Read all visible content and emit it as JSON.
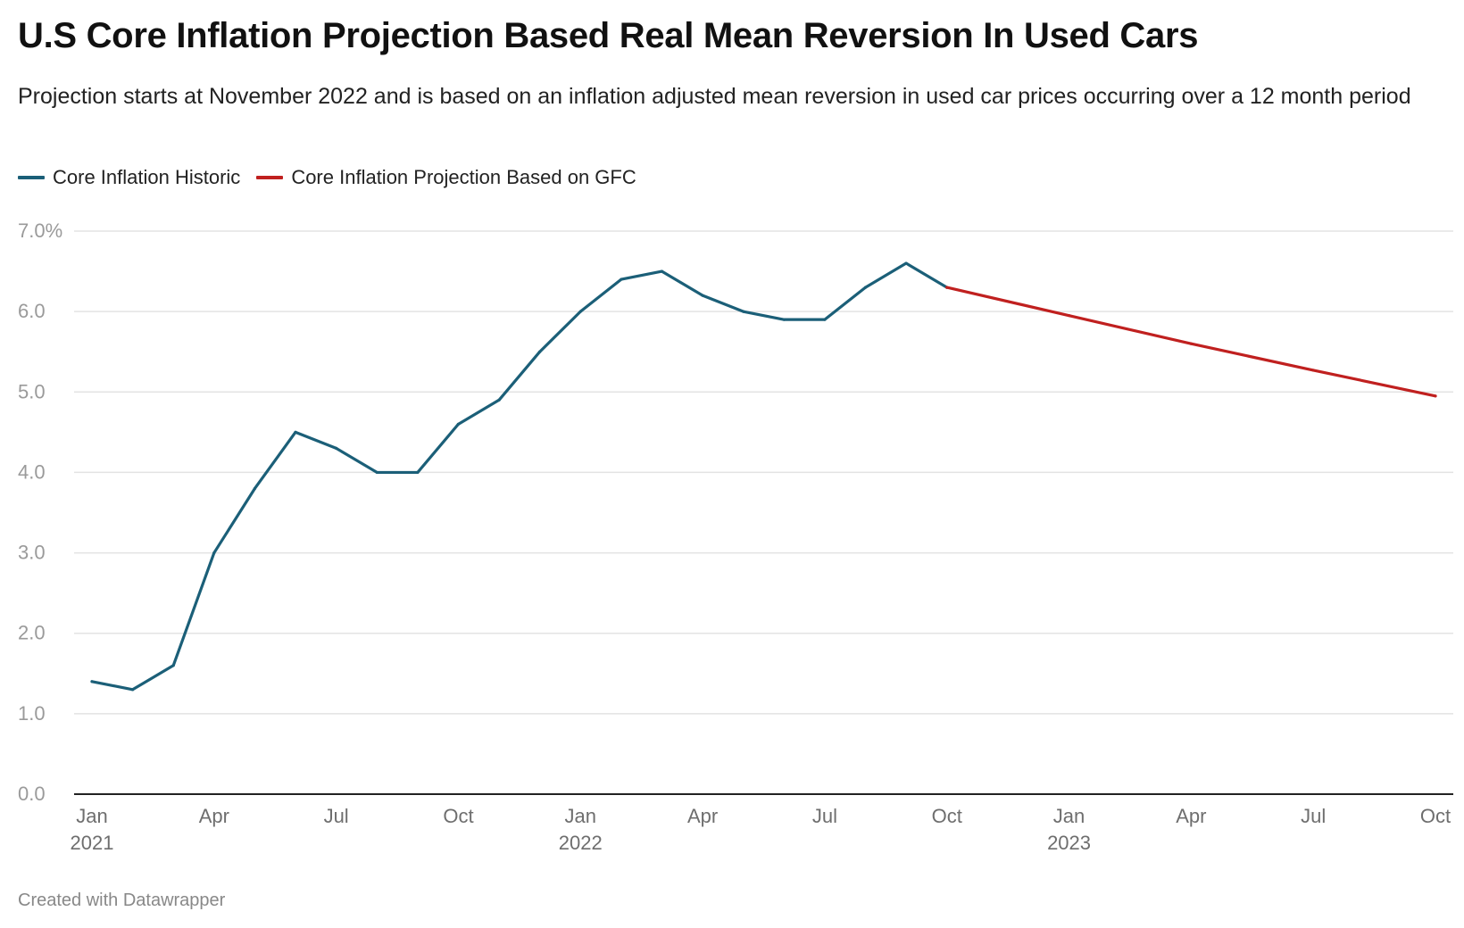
{
  "title": "U.S Core Inflation Projection Based Real Mean Reversion In Used Cars",
  "subtitle": "Projection starts at November 2022 and is based on an inflation adjusted mean reversion in used car prices occurring over a 12 month period",
  "footer": "Created with Datawrapper",
  "legend": [
    {
      "label": "Core Inflation Historic",
      "color": "#1b5f78"
    },
    {
      "label": "Core Inflation Projection Based on GFC",
      "color": "#c0201f"
    }
  ],
  "chart_data": {
    "type": "line",
    "title": "U.S Core Inflation Projection Based Real Mean Reversion In Used Cars",
    "x_unit": "month",
    "xlim": [
      "2021-01",
      "2023-10"
    ],
    "ylim": [
      0,
      7
    ],
    "y_ticks": [
      {
        "value": 0,
        "label": "0.0"
      },
      {
        "value": 1,
        "label": "1.0"
      },
      {
        "value": 2,
        "label": "2.0"
      },
      {
        "value": 3,
        "label": "3.0"
      },
      {
        "value": 4,
        "label": "4.0"
      },
      {
        "value": 5,
        "label": "5.0"
      },
      {
        "value": 6,
        "label": "6.0"
      },
      {
        "value": 7,
        "label": "7.0%"
      }
    ],
    "x_ticks": [
      {
        "date": "2021-01",
        "label": "Jan",
        "year": "2021"
      },
      {
        "date": "2021-04",
        "label": "Apr",
        "year": ""
      },
      {
        "date": "2021-07",
        "label": "Jul",
        "year": ""
      },
      {
        "date": "2021-10",
        "label": "Oct",
        "year": ""
      },
      {
        "date": "2022-01",
        "label": "Jan",
        "year": "2022"
      },
      {
        "date": "2022-04",
        "label": "Apr",
        "year": ""
      },
      {
        "date": "2022-07",
        "label": "Jul",
        "year": ""
      },
      {
        "date": "2022-10",
        "label": "Oct",
        "year": ""
      },
      {
        "date": "2023-01",
        "label": "Jan",
        "year": "2023"
      },
      {
        "date": "2023-04",
        "label": "Apr",
        "year": ""
      },
      {
        "date": "2023-07",
        "label": "Jul",
        "year": ""
      },
      {
        "date": "2023-10",
        "label": "Oct",
        "year": ""
      }
    ],
    "grid": true,
    "legend_position": "top-left",
    "series": [
      {
        "name": "Core Inflation Historic",
        "color": "#1b5f78",
        "points": [
          {
            "x": "2021-01",
            "y": 1.4
          },
          {
            "x": "2021-02",
            "y": 1.3
          },
          {
            "x": "2021-03",
            "y": 1.6
          },
          {
            "x": "2021-04",
            "y": 3.0
          },
          {
            "x": "2021-05",
            "y": 3.8
          },
          {
            "x": "2021-06",
            "y": 4.5
          },
          {
            "x": "2021-07",
            "y": 4.3
          },
          {
            "x": "2021-08",
            "y": 4.0
          },
          {
            "x": "2021-09",
            "y": 4.0
          },
          {
            "x": "2021-10",
            "y": 4.6
          },
          {
            "x": "2021-11",
            "y": 4.9
          },
          {
            "x": "2021-12",
            "y": 5.5
          },
          {
            "x": "2022-01",
            "y": 6.0
          },
          {
            "x": "2022-02",
            "y": 6.4
          },
          {
            "x": "2022-03",
            "y": 6.5
          },
          {
            "x": "2022-04",
            "y": 6.2
          },
          {
            "x": "2022-05",
            "y": 6.0
          },
          {
            "x": "2022-06",
            "y": 5.9
          },
          {
            "x": "2022-07",
            "y": 5.9
          },
          {
            "x": "2022-08",
            "y": 6.3
          },
          {
            "x": "2022-09",
            "y": 6.6
          },
          {
            "x": "2022-10",
            "y": 6.3
          }
        ]
      },
      {
        "name": "Core Inflation Projection Based on GFC",
        "color": "#c0201f",
        "points": [
          {
            "x": "2022-10",
            "y": 6.3
          },
          {
            "x": "2023-01",
            "y": 5.95
          },
          {
            "x": "2023-04",
            "y": 5.6
          },
          {
            "x": "2023-07",
            "y": 5.27
          },
          {
            "x": "2023-10",
            "y": 4.95
          }
        ]
      }
    ]
  }
}
